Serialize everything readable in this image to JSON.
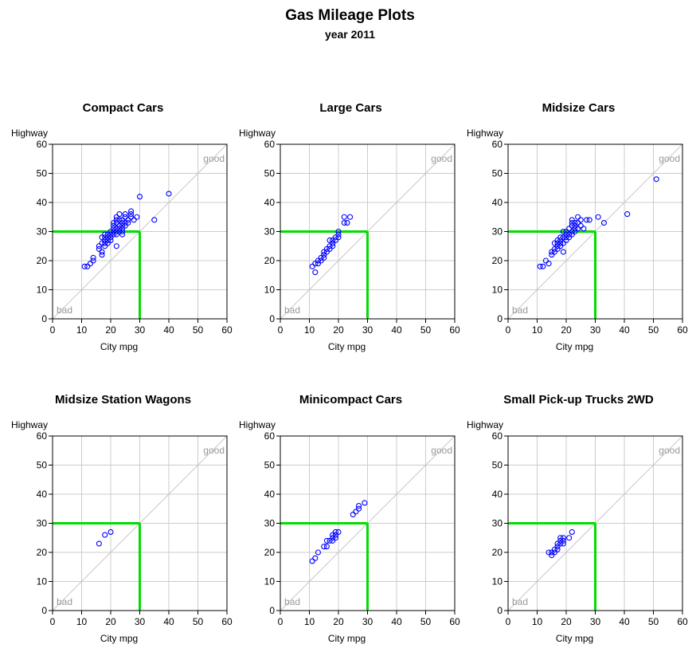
{
  "title": "Gas Mileage Plots",
  "subtitle": "year 2011",
  "colors": {
    "marker": "#0000ff",
    "threshold": "#00dd00",
    "grid": "#cccccc",
    "diagonal": "#c8c8c8",
    "note": "#999999"
  },
  "chart_data": [
    {
      "type": "scatter",
      "title": "Compact Cars",
      "xlabel": "City mpg",
      "ylabel": "Highway",
      "xlim": [
        0,
        60
      ],
      "ylim": [
        0,
        60
      ],
      "xticks": [
        "0",
        "10",
        "20",
        "30",
        "40",
        "50",
        "60"
      ],
      "yticks": [
        "0",
        "10",
        "20",
        "30",
        "40",
        "50",
        "60"
      ],
      "grid": true,
      "reference_diagonal": true,
      "threshold": {
        "city": 30,
        "highway": 30
      },
      "annotations": {
        "top": "good",
        "bottom": "bad"
      },
      "x": [
        11,
        12,
        13,
        14,
        14,
        16,
        16,
        17,
        17,
        17,
        17,
        18,
        18,
        18,
        18,
        18,
        19,
        19,
        19,
        19,
        20,
        20,
        20,
        20,
        21,
        21,
        21,
        21,
        21,
        22,
        22,
        22,
        22,
        22,
        22,
        22,
        23,
        23,
        23,
        23,
        23,
        24,
        24,
        24,
        24,
        24,
        24,
        25,
        25,
        25,
        25,
        26,
        26,
        27,
        27,
        27,
        28,
        29,
        30,
        35,
        40
      ],
      "y": [
        18,
        18,
        19,
        20,
        21,
        24,
        25,
        22,
        23,
        26,
        28,
        25,
        26,
        27,
        28,
        29,
        26,
        27,
        28,
        29,
        27,
        28,
        29,
        30,
        29,
        30,
        31,
        32,
        33,
        25,
        29,
        30,
        31,
        33,
        34,
        35,
        30,
        31,
        32,
        34,
        36,
        29,
        30,
        31,
        32,
        33,
        34,
        32,
        33,
        35,
        36,
        33,
        34,
        35,
        36,
        37,
        34,
        35,
        42,
        34,
        43
      ]
    },
    {
      "type": "scatter",
      "title": "Large Cars",
      "xlabel": "City mpg",
      "ylabel": "Highway",
      "xlim": [
        0,
        60
      ],
      "ylim": [
        0,
        60
      ],
      "xticks": [
        "0",
        "10",
        "20",
        "30",
        "40",
        "50",
        "60"
      ],
      "yticks": [
        "0",
        "10",
        "20",
        "30",
        "40",
        "50",
        "60"
      ],
      "grid": true,
      "reference_diagonal": true,
      "threshold": {
        "city": 30,
        "highway": 30
      },
      "annotations": {
        "top": "good",
        "bottom": "bad"
      },
      "x": [
        11,
        12,
        12,
        13,
        13,
        14,
        14,
        15,
        15,
        15,
        16,
        16,
        17,
        17,
        17,
        18,
        18,
        18,
        19,
        19,
        20,
        20,
        20,
        22,
        22,
        23,
        24
      ],
      "y": [
        18,
        16,
        19,
        19,
        20,
        20,
        21,
        21,
        22,
        23,
        23,
        24,
        24,
        25,
        27,
        25,
        26,
        27,
        27,
        28,
        28,
        29,
        30,
        33,
        35,
        33,
        35
      ]
    },
    {
      "type": "scatter",
      "title": "Midsize Cars",
      "xlabel": "City mpg",
      "ylabel": "Highway",
      "xlim": [
        0,
        60
      ],
      "ylim": [
        0,
        60
      ],
      "xticks": [
        "0",
        "10",
        "20",
        "30",
        "40",
        "50",
        "60"
      ],
      "yticks": [
        "0",
        "10",
        "20",
        "30",
        "40",
        "50",
        "60"
      ],
      "grid": true,
      "reference_diagonal": true,
      "threshold": {
        "city": 30,
        "highway": 30
      },
      "annotations": {
        "top": "good",
        "bottom": "bad"
      },
      "x": [
        11,
        12,
        13,
        14,
        15,
        15,
        16,
        16,
        16,
        17,
        17,
        17,
        17,
        18,
        18,
        18,
        18,
        19,
        19,
        19,
        19,
        20,
        20,
        20,
        20,
        21,
        21,
        21,
        22,
        22,
        22,
        22,
        22,
        23,
        23,
        23,
        23,
        24,
        24,
        24,
        25,
        25,
        26,
        27,
        28,
        31,
        33,
        41,
        51
      ],
      "y": [
        18,
        18,
        20,
        19,
        22,
        23,
        23,
        24,
        26,
        24,
        25,
        26,
        27,
        25,
        26,
        27,
        28,
        23,
        26,
        28,
        30,
        27,
        28,
        29,
        30,
        28,
        29,
        31,
        29,
        30,
        32,
        33,
        34,
        30,
        31,
        32,
        33,
        31,
        33,
        35,
        32,
        34,
        31,
        34,
        34,
        35,
        33,
        36,
        48
      ]
    },
    {
      "type": "scatter",
      "title": "Midsize Station Wagons",
      "xlabel": "City mpg",
      "ylabel": "Highway",
      "xlim": [
        0,
        60
      ],
      "ylim": [
        0,
        60
      ],
      "xticks": [
        "0",
        "10",
        "20",
        "30",
        "40",
        "50",
        "60"
      ],
      "yticks": [
        "0",
        "10",
        "20",
        "30",
        "40",
        "50",
        "60"
      ],
      "grid": true,
      "reference_diagonal": true,
      "threshold": {
        "city": 30,
        "highway": 30
      },
      "annotations": {
        "top": "good",
        "bottom": "bad"
      },
      "x": [
        16,
        18,
        20
      ],
      "y": [
        23,
        26,
        27
      ]
    },
    {
      "type": "scatter",
      "title": "Minicompact Cars",
      "xlabel": "City mpg",
      "ylabel": "Highway",
      "xlim": [
        0,
        60
      ],
      "ylim": [
        0,
        60
      ],
      "xticks": [
        "0",
        "10",
        "20",
        "30",
        "40",
        "50",
        "60"
      ],
      "yticks": [
        "0",
        "10",
        "20",
        "30",
        "40",
        "50",
        "60"
      ],
      "grid": true,
      "reference_diagonal": true,
      "threshold": {
        "city": 30,
        "highway": 30
      },
      "annotations": {
        "top": "good",
        "bottom": "bad"
      },
      "x": [
        11,
        12,
        13,
        15,
        16,
        16,
        17,
        18,
        18,
        18,
        19,
        19,
        19,
        20,
        25,
        26,
        27,
        27,
        29
      ],
      "y": [
        17,
        18,
        20,
        22,
        22,
        24,
        24,
        24,
        25,
        26,
        25,
        26,
        27,
        27,
        33,
        34,
        35,
        36,
        37
      ]
    },
    {
      "type": "scatter",
      "title": "Small Pick-up Trucks 2WD",
      "xlabel": "City mpg",
      "ylabel": "Highway",
      "xlim": [
        0,
        60
      ],
      "ylim": [
        0,
        60
      ],
      "xticks": [
        "0",
        "10",
        "20",
        "30",
        "40",
        "50",
        "60"
      ],
      "yticks": [
        "0",
        "10",
        "20",
        "30",
        "40",
        "50",
        "60"
      ],
      "grid": true,
      "reference_diagonal": true,
      "threshold": {
        "city": 30,
        "highway": 30
      },
      "annotations": {
        "top": "good",
        "bottom": "bad"
      },
      "x": [
        14,
        15,
        15,
        16,
        16,
        17,
        17,
        17,
        18,
        18,
        18,
        19,
        19,
        19,
        21,
        22
      ],
      "y": [
        20,
        19,
        20,
        20,
        21,
        21,
        22,
        23,
        23,
        24,
        25,
        23,
        24,
        25,
        25,
        27
      ]
    }
  ]
}
